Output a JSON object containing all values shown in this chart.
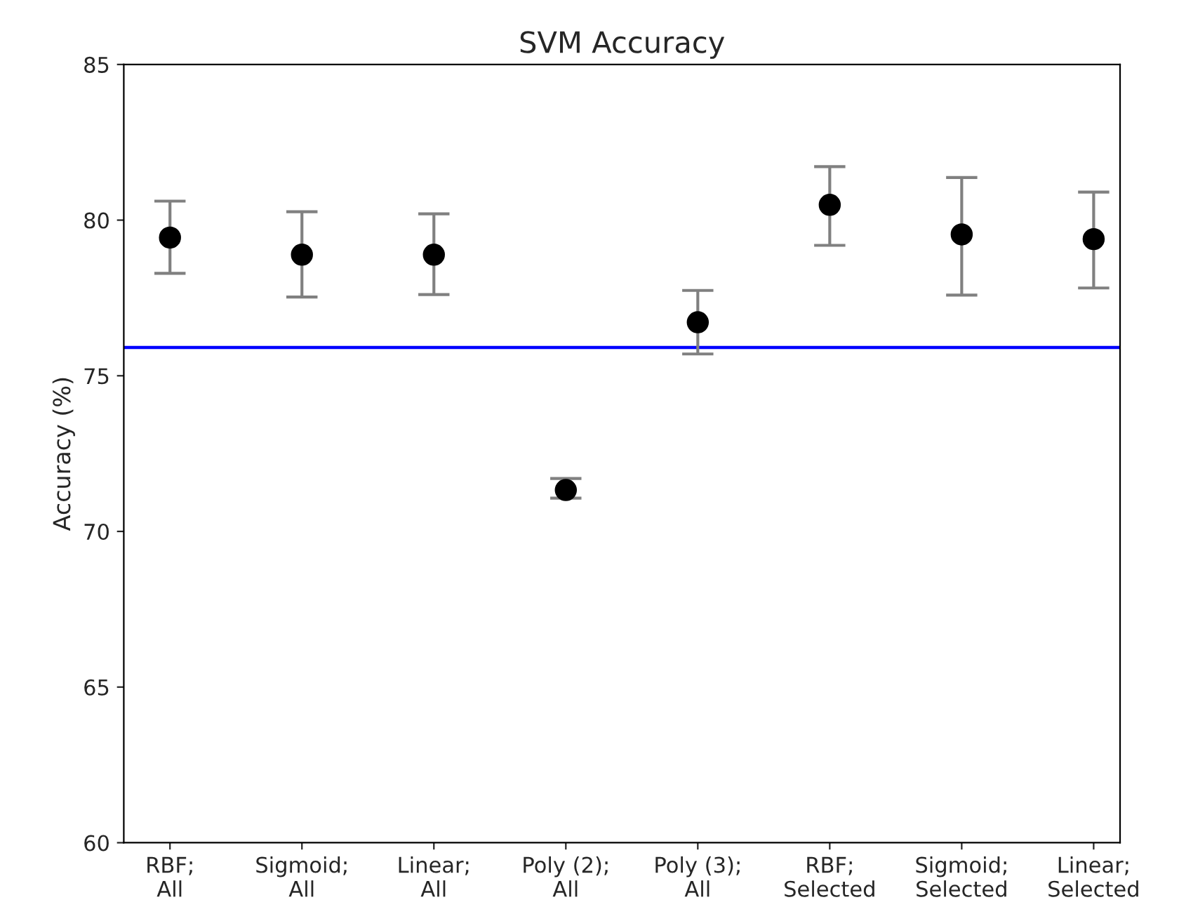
{
  "chart_data": {
    "type": "scatter",
    "title": "SVM Accuracy",
    "ylabel": "Accuracy (%)",
    "categories": [
      "RBF;\nAll",
      "Sigmoid;\nAll",
      "Linear;\nAll",
      "Poly (2);\nAll",
      "Poly (3);\nAll",
      "RBF;\nSelected",
      "Sigmoid;\nSelected",
      "Linear;\nSelected"
    ],
    "series": [
      {
        "color": "#000000",
        "values": [
          79.44,
          78.89,
          78.89,
          71.33,
          76.72,
          80.49,
          79.54,
          79.39
        ],
        "errors": [
          [
            78.29,
            80.61
          ],
          [
            77.53,
            80.27
          ],
          [
            77.61,
            80.2
          ],
          [
            71.07,
            71.7
          ],
          [
            75.7,
            77.74
          ],
          [
            79.19,
            81.72
          ],
          [
            77.59,
            81.37
          ],
          [
            77.82,
            80.9
          ]
        ]
      }
    ],
    "ylim": [
      60,
      85
    ],
    "yticks": [
      60,
      65,
      70,
      75,
      80,
      85
    ],
    "ref_lines": [
      {
        "axis": "y",
        "value": 75.91,
        "color": "#0000ff",
        "line_style": "solid"
      }
    ],
    "marker": "circle",
    "grid": false,
    "legend": false
  }
}
